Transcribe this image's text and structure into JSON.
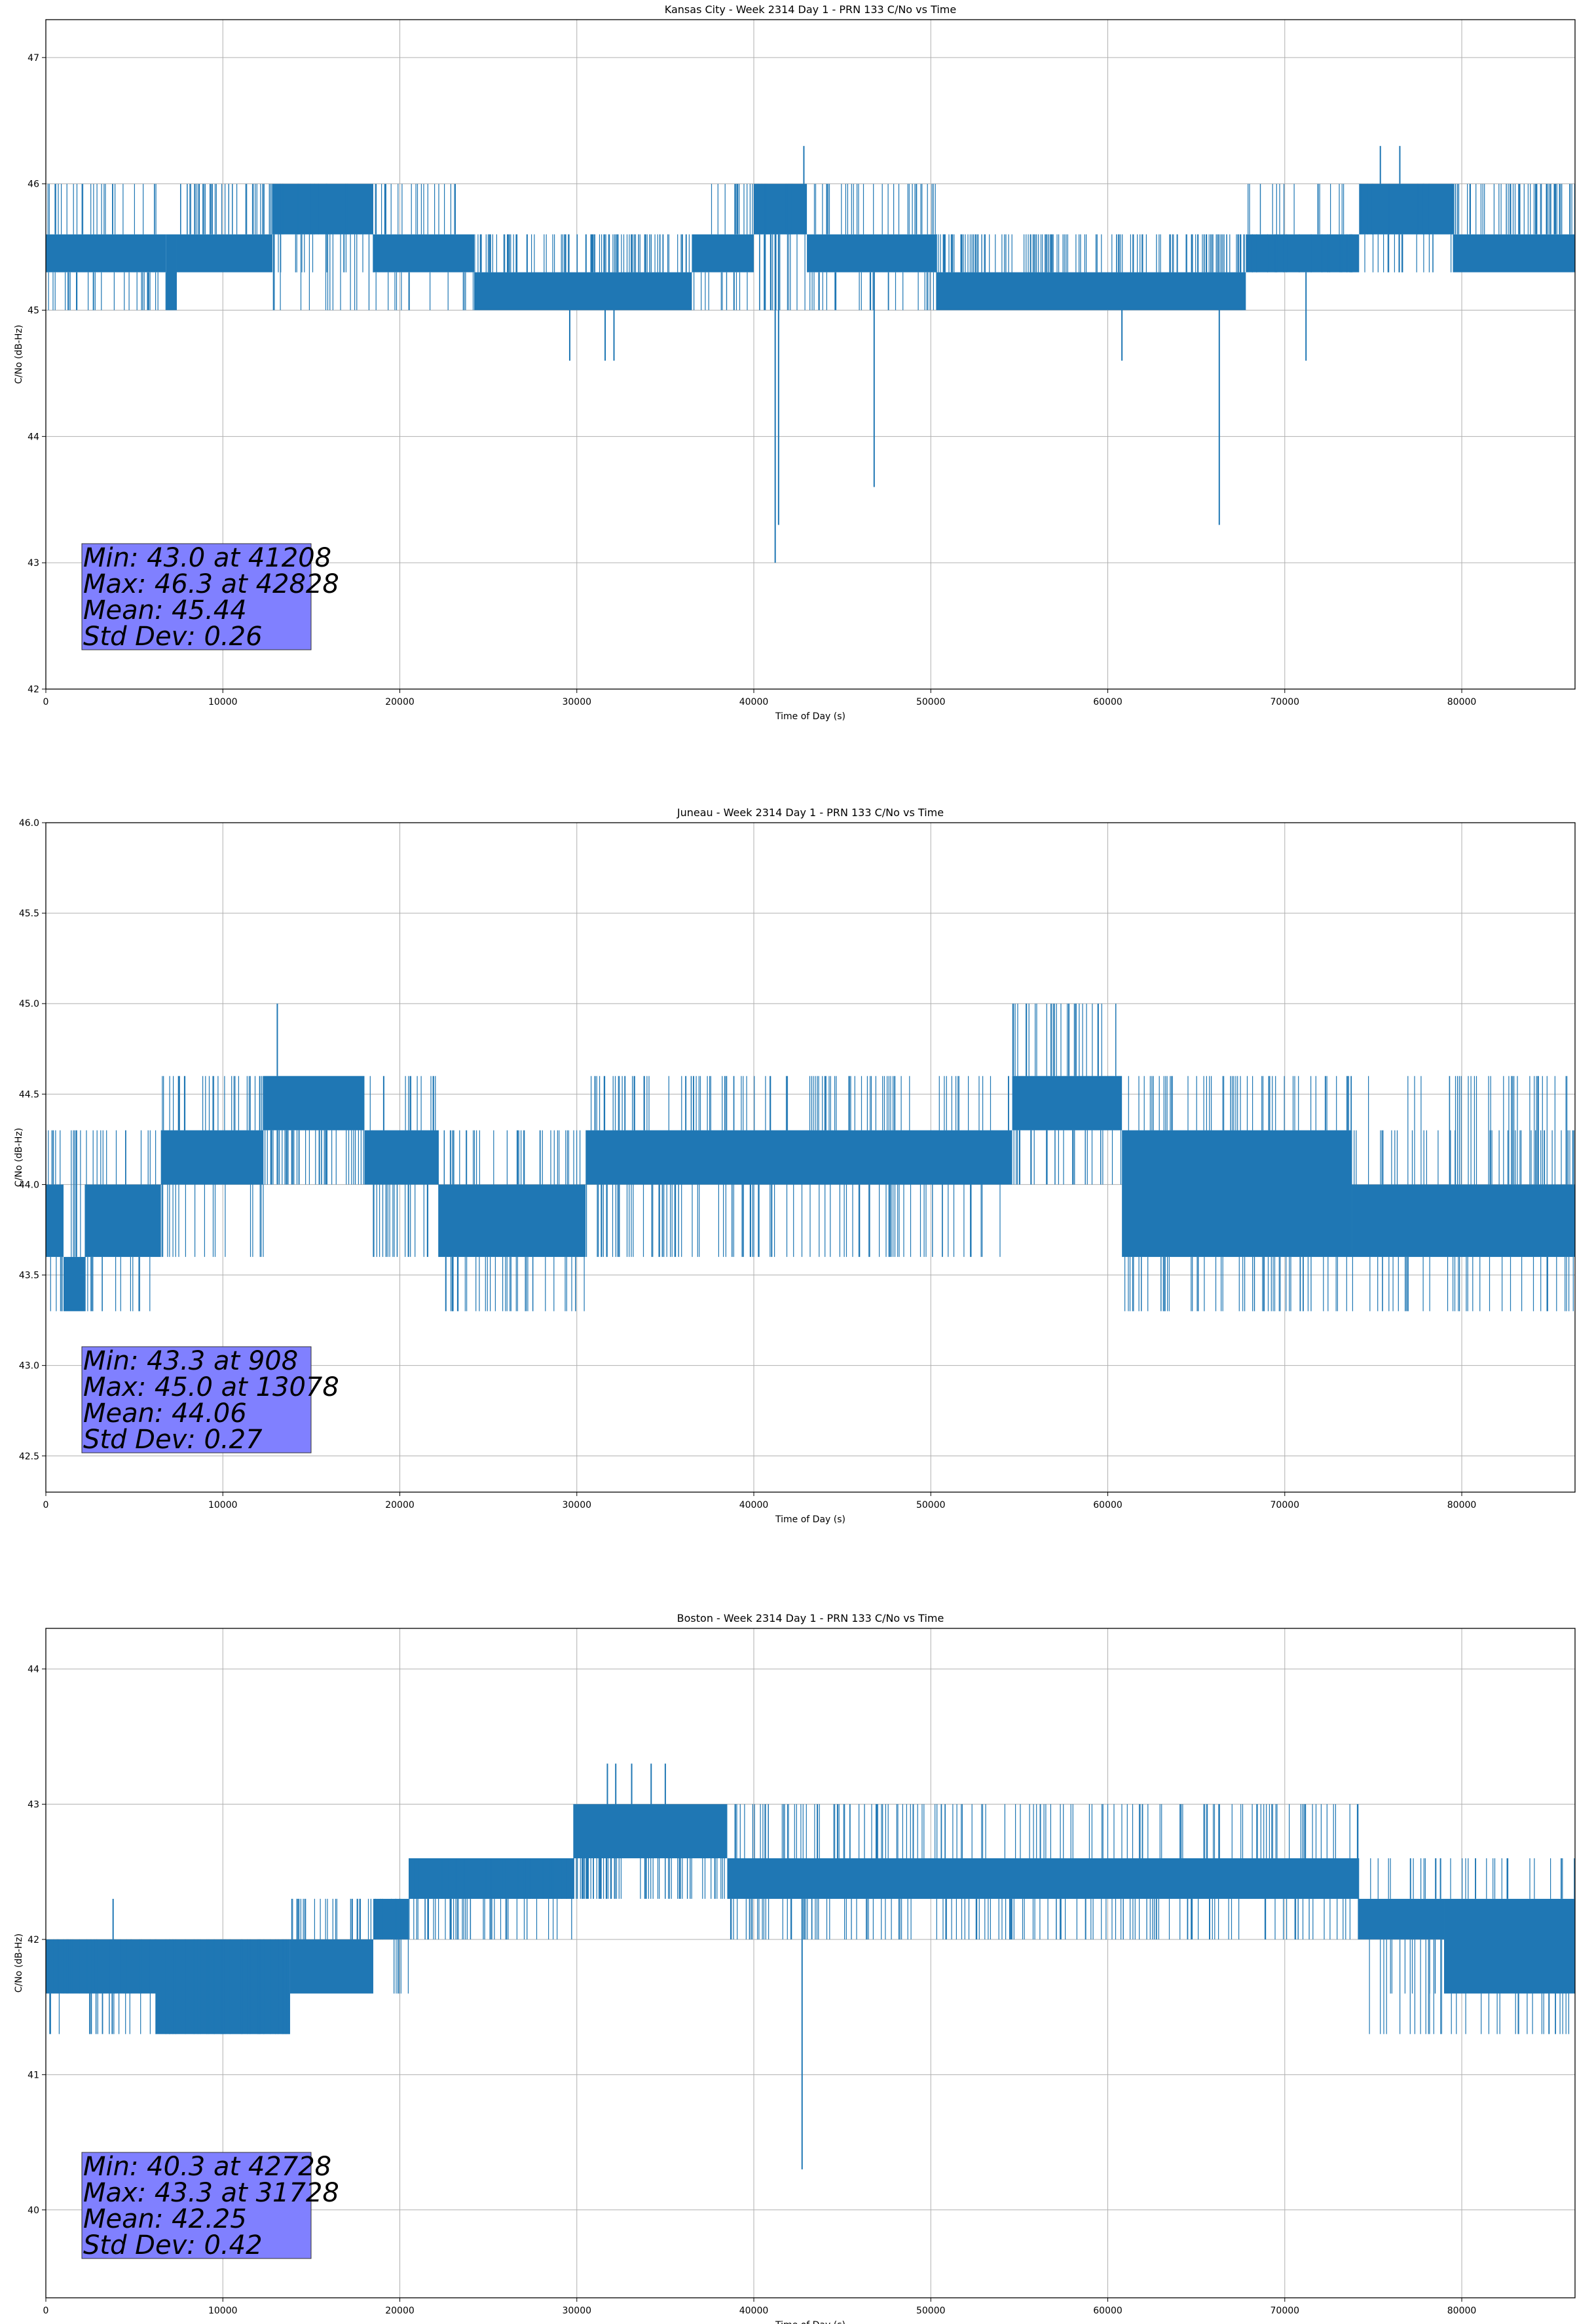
{
  "chart_data": [
    {
      "type": "line",
      "title": "Kansas City - Week 2314 Day 1 - PRN 133 C/No vs Time",
      "xlabel": "Time of Day (s)",
      "ylabel": "C/No (dB-Hz)",
      "xlim": [
        0,
        86400
      ],
      "ylim": [
        42.0,
        47.3
      ],
      "xticks": [
        0,
        10000,
        20000,
        30000,
        40000,
        50000,
        60000,
        70000,
        80000
      ],
      "yticks": [
        42,
        43,
        44,
        45,
        46,
        47
      ],
      "ytick_decimals": 0,
      "grid": true,
      "series_color": "#1f77b4",
      "series": [
        {
          "segments": [
            {
              "x0": 0,
              "x1": 6800,
              "lo": 45.3,
              "hi": 45.6
            },
            {
              "x0": 6800,
              "x1": 7400,
              "lo": 45.0,
              "hi": 45.6
            },
            {
              "x0": 7400,
              "x1": 12800,
              "lo": 45.3,
              "hi": 45.6
            },
            {
              "x0": 12800,
              "x1": 18500,
              "lo": 45.6,
              "hi": 46.0
            },
            {
              "x0": 18500,
              "x1": 24200,
              "lo": 45.3,
              "hi": 45.6
            },
            {
              "x0": 24200,
              "x1": 36500,
              "lo": 45.0,
              "hi": 45.3
            },
            {
              "x0": 36500,
              "x1": 40000,
              "lo": 45.3,
              "hi": 45.6
            },
            {
              "x0": 40000,
              "x1": 43000,
              "lo": 45.6,
              "hi": 46.0
            },
            {
              "x0": 43000,
              "x1": 50300,
              "lo": 45.3,
              "hi": 45.6
            },
            {
              "x0": 50300,
              "x1": 67800,
              "lo": 45.0,
              "hi": 45.3
            },
            {
              "x0": 67800,
              "x1": 74200,
              "lo": 45.3,
              "hi": 45.6
            },
            {
              "x0": 74200,
              "x1": 79500,
              "lo": 45.6,
              "hi": 46.0
            },
            {
              "x0": 79500,
              "x1": 86400,
              "lo": 45.3,
              "hi": 45.6
            }
          ],
          "noise": [
            {
              "x0": 0,
              "x1": 6800,
              "vals": [
                46.0,
                45.0
              ]
            },
            {
              "x0": 7400,
              "x1": 12800,
              "vals": [
                46.0
              ]
            },
            {
              "x0": 12800,
              "x1": 24200,
              "vals": [
                45.3,
                46.0,
                45.0
              ]
            },
            {
              "x0": 24200,
              "x1": 36500,
              "vals": [
                45.6
              ]
            },
            {
              "x0": 36500,
              "x1": 43000,
              "vals": [
                46.0,
                45.0
              ]
            },
            {
              "x0": 43000,
              "x1": 50300,
              "vals": [
                45.0,
                46.0
              ]
            },
            {
              "x0": 50300,
              "x1": 67800,
              "vals": [
                45.6
              ]
            },
            {
              "x0": 67800,
              "x1": 79500,
              "vals": [
                46.0,
                45.3,
                45.6
              ]
            },
            {
              "x0": 79500,
              "x1": 86400,
              "vals": [
                46.0
              ]
            }
          ],
          "spikes": [
            [
              41208,
              43.0
            ],
            [
              41400,
              43.3
            ],
            [
              46800,
              43.6
            ],
            [
              66300,
              43.3
            ],
            [
              29600,
              44.6
            ],
            [
              31600,
              44.6
            ],
            [
              32100,
              44.6
            ],
            [
              60800,
              44.6
            ],
            [
              71200,
              44.6
            ],
            [
              42828,
              46.3
            ],
            [
              75400,
              46.3
            ],
            [
              76500,
              46.3
            ]
          ]
        }
      ],
      "stats": [
        "Min: 43.0 at 41208",
        "Max: 46.3 at 42828",
        "Mean: 45.44",
        "Std Dev: 0.26"
      ],
      "stats_box_color": "#8080ff"
    },
    {
      "type": "line",
      "title": "Juneau - Week 2314 Day 1 - PRN 133 C/No vs Time",
      "xlabel": "Time of Day (s)",
      "ylabel": "C/No (dB-Hz)",
      "xlim": [
        0,
        86400
      ],
      "ylim": [
        42.3,
        46.0
      ],
      "xticks": [
        0,
        10000,
        20000,
        30000,
        40000,
        50000,
        60000,
        70000,
        80000
      ],
      "yticks": [
        42.5,
        43.0,
        43.5,
        44.0,
        44.5,
        45.0,
        45.5,
        46.0
      ],
      "ytick_decimals": 1,
      "grid": true,
      "series_color": "#1f77b4",
      "series": [
        {
          "segments": [
            {
              "x0": 0,
              "x1": 1000,
              "lo": 43.6,
              "hi": 44.0
            },
            {
              "x0": 1000,
              "x1": 2200,
              "lo": 43.3,
              "hi": 43.6
            },
            {
              "x0": 2200,
              "x1": 6500,
              "lo": 43.6,
              "hi": 44.0
            },
            {
              "x0": 6500,
              "x1": 12300,
              "lo": 44.0,
              "hi": 44.3
            },
            {
              "x0": 12300,
              "x1": 18000,
              "lo": 44.3,
              "hi": 44.6
            },
            {
              "x0": 18000,
              "x1": 22200,
              "lo": 44.0,
              "hi": 44.3
            },
            {
              "x0": 22200,
              "x1": 30500,
              "lo": 43.6,
              "hi": 44.0
            },
            {
              "x0": 30500,
              "x1": 54600,
              "lo": 44.0,
              "hi": 44.3
            },
            {
              "x0": 54600,
              "x1": 60800,
              "lo": 44.3,
              "hi": 44.6
            },
            {
              "x0": 60800,
              "x1": 73800,
              "lo": 43.6,
              "hi": 44.3
            },
            {
              "x0": 73800,
              "x1": 86400,
              "lo": 43.6,
              "hi": 44.0
            }
          ],
          "noise": [
            {
              "x0": 0,
              "x1": 6500,
              "vals": [
                44.3,
                43.3
              ]
            },
            {
              "x0": 6500,
              "x1": 12300,
              "vals": [
                43.6,
                44.6
              ]
            },
            {
              "x0": 12300,
              "x1": 18000,
              "vals": [
                44.0
              ]
            },
            {
              "x0": 18000,
              "x1": 22200,
              "vals": [
                44.6,
                43.6
              ]
            },
            {
              "x0": 22200,
              "x1": 30500,
              "vals": [
                44.3,
                43.3
              ]
            },
            {
              "x0": 30500,
              "x1": 54600,
              "vals": [
                43.6,
                44.6
              ]
            },
            {
              "x0": 54600,
              "x1": 60800,
              "vals": [
                44.0,
                45.0
              ]
            },
            {
              "x0": 60800,
              "x1": 73800,
              "vals": [
                44.6,
                43.3
              ]
            },
            {
              "x0": 73800,
              "x1": 86400,
              "vals": [
                44.3,
                43.3,
                44.6
              ]
            }
          ],
          "spikes": [
            [
              13078,
              45.0
            ],
            [
              55400,
              45.0
            ],
            [
              56800,
              45.0
            ],
            [
              57800,
              45.0
            ],
            [
              58200,
              45.0
            ],
            [
              908,
              43.3
            ],
            [
              22600,
              43.3
            ],
            [
              23000,
              43.3
            ]
          ]
        }
      ],
      "stats": [
        "Min: 43.3 at 908",
        "Max: 45.0 at 13078",
        "Mean: 44.06",
        "Std Dev: 0.27"
      ],
      "stats_box_color": "#8080ff"
    },
    {
      "type": "line",
      "title": "Boston - Week 2314 Day 1 - PRN 133 C/No vs Time",
      "xlabel": "Time of Day (s)",
      "ylabel": "C/No (dB-Hz)",
      "xlim": [
        0,
        86400
      ],
      "ylim": [
        39.35,
        44.3
      ],
      "xticks": [
        0,
        10000,
        20000,
        30000,
        40000,
        50000,
        60000,
        70000,
        80000
      ],
      "yticks": [
        40,
        41,
        42,
        43,
        44
      ],
      "ytick_decimals": 0,
      "grid": true,
      "series_color": "#1f77b4",
      "series": [
        {
          "segments": [
            {
              "x0": 0,
              "x1": 6200,
              "lo": 41.6,
              "hi": 42.0
            },
            {
              "x0": 6200,
              "x1": 13800,
              "lo": 41.3,
              "hi": 42.0
            },
            {
              "x0": 13800,
              "x1": 18500,
              "lo": 41.6,
              "hi": 42.0
            },
            {
              "x0": 18500,
              "x1": 20500,
              "lo": 42.0,
              "hi": 42.3
            },
            {
              "x0": 20500,
              "x1": 29800,
              "lo": 42.3,
              "hi": 42.6
            },
            {
              "x0": 29800,
              "x1": 38500,
              "lo": 42.6,
              "hi": 43.0
            },
            {
              "x0": 38500,
              "x1": 74200,
              "lo": 42.3,
              "hi": 42.6
            },
            {
              "x0": 74200,
              "x1": 79000,
              "lo": 42.0,
              "hi": 42.3
            },
            {
              "x0": 79000,
              "x1": 86400,
              "lo": 41.6,
              "hi": 42.3
            }
          ],
          "noise": [
            {
              "x0": 0,
              "x1": 13800,
              "vals": [
                41.3,
                42.0
              ]
            },
            {
              "x0": 13800,
              "x1": 20500,
              "vals": [
                42.3,
                41.6
              ]
            },
            {
              "x0": 20500,
              "x1": 29800,
              "vals": [
                42.0,
                42.6
              ]
            },
            {
              "x0": 29800,
              "x1": 38500,
              "vals": [
                42.3
              ]
            },
            {
              "x0": 38500,
              "x1": 74200,
              "vals": [
                43.0,
                42.0
              ]
            },
            {
              "x0": 74200,
              "x1": 86400,
              "vals": [
                41.6,
                41.3,
                42.6
              ]
            }
          ],
          "spikes": [
            [
              42728,
              40.3
            ],
            [
              31728,
              43.3
            ],
            [
              32200,
              43.3
            ],
            [
              33100,
              43.3
            ],
            [
              34200,
              43.3
            ],
            [
              35000,
              43.3
            ],
            [
              3800,
              42.3
            ],
            [
              14200,
              42.3
            ],
            [
              78800,
              42.6
            ]
          ]
        }
      ],
      "stats": [
        "Min: 40.3 at 42728",
        "Max: 43.3 at 31728",
        "Mean: 42.25",
        "Std Dev: 0.42"
      ],
      "stats_box_color": "#8080ff"
    }
  ]
}
